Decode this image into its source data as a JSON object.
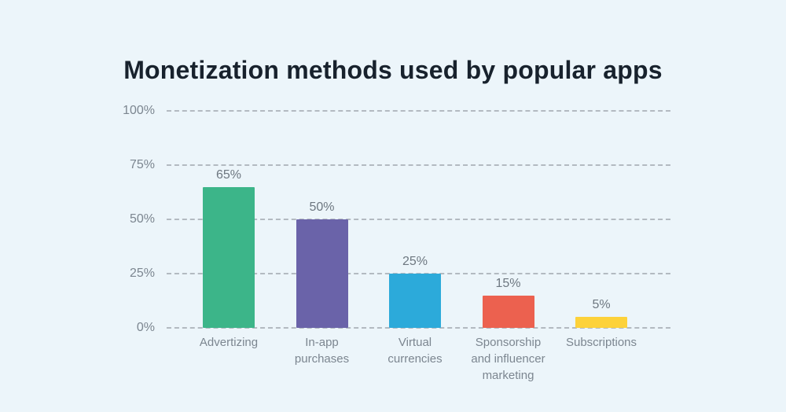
{
  "chart_data": {
    "type": "bar",
    "title": "Monetization methods used by popular apps",
    "categories": [
      "Advertizing",
      "In-app purchases",
      "Virtual currencies",
      "Sponsorship and influencer marketing",
      "Subscriptions"
    ],
    "values": [
      65,
      50,
      25,
      15,
      5
    ],
    "value_labels": [
      "65%",
      "50%",
      "25%",
      "15%",
      "5%"
    ],
    "bar_colors": [
      "#3cb589",
      "#6a63a9",
      "#2caada",
      "#ec614f",
      "#fdd23a"
    ],
    "yticks": [
      0,
      25,
      50,
      75,
      100
    ],
    "ytick_labels": [
      "0%",
      "25%",
      "50%",
      "75%",
      "100%"
    ],
    "ylim": [
      0,
      100
    ],
    "xlabel": "",
    "ylabel": "",
    "grid": "horizontal-dashed",
    "legend": "none"
  },
  "theme": {
    "background_color": "#ecf5fa",
    "title_color": "#18222d",
    "axis_label_color": "#7c8690",
    "value_label_color": "#6d7780",
    "gridline_color": "#b3bac1"
  }
}
